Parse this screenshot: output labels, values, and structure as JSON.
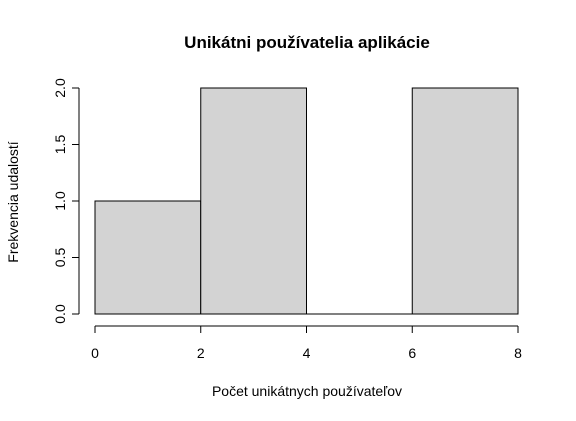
{
  "chart_data": {
    "type": "bar",
    "title": "Unikátni používatelia aplikácie",
    "xlabel": "Počet unikátnych používateľov",
    "ylabel": "Frekvencia udalostí",
    "bins": [
      {
        "from": 0,
        "to": 2,
        "count": 1
      },
      {
        "from": 2,
        "to": 4,
        "count": 2
      },
      {
        "from": 4,
        "to": 6,
        "count": 0
      },
      {
        "from": 6,
        "to": 8,
        "count": 2
      }
    ],
    "xlim": [
      0,
      8
    ],
    "ylim": [
      0,
      2
    ],
    "x_ticks": [
      0,
      2,
      4,
      6,
      8
    ],
    "x_tick_labels": [
      "0",
      "2",
      "4",
      "6",
      "8"
    ],
    "y_ticks": [
      0,
      0.5,
      1,
      1.5,
      2
    ],
    "y_tick_labels": [
      "0.0",
      "0.5",
      "1.0",
      "1.5",
      "2.0"
    ],
    "bar_color": "#d3d3d3",
    "grid": false
  }
}
